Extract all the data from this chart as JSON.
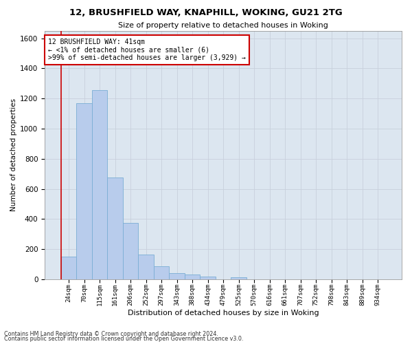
{
  "title1": "12, BRUSHFIELD WAY, KNAPHILL, WOKING, GU21 2TG",
  "title2": "Size of property relative to detached houses in Woking",
  "xlabel": "Distribution of detached houses by size in Woking",
  "ylabel": "Number of detached properties",
  "bar_labels": [
    "24sqm",
    "70sqm",
    "115sqm",
    "161sqm",
    "206sqm",
    "252sqm",
    "297sqm",
    "343sqm",
    "388sqm",
    "434sqm",
    "479sqm",
    "525sqm",
    "570sqm",
    "616sqm",
    "661sqm",
    "707sqm",
    "752sqm",
    "798sqm",
    "843sqm",
    "889sqm",
    "934sqm"
  ],
  "bar_values": [
    150,
    1170,
    1255,
    675,
    375,
    165,
    85,
    40,
    30,
    20,
    0,
    15,
    0,
    0,
    0,
    0,
    0,
    0,
    0,
    0,
    0
  ],
  "bar_color": "#b8ccec",
  "bar_edge_color": "#7aadd4",
  "annotation_text": "12 BRUSHFIELD WAY: 41sqm\n← <1% of detached houses are smaller (6)\n>99% of semi-detached houses are larger (3,929) →",
  "annotation_box_color": "#ffffff",
  "annotation_box_edge_color": "#cc0000",
  "vline_color": "#cc0000",
  "ylim": [
    0,
    1650
  ],
  "yticks": [
    0,
    200,
    400,
    600,
    800,
    1000,
    1200,
    1400,
    1600
  ],
  "grid_color": "#c8d0dc",
  "bg_color": "#dce6f0",
  "footer1": "Contains HM Land Registry data © Crown copyright and database right 2024.",
  "footer2": "Contains public sector information licensed under the Open Government Licence v3.0."
}
